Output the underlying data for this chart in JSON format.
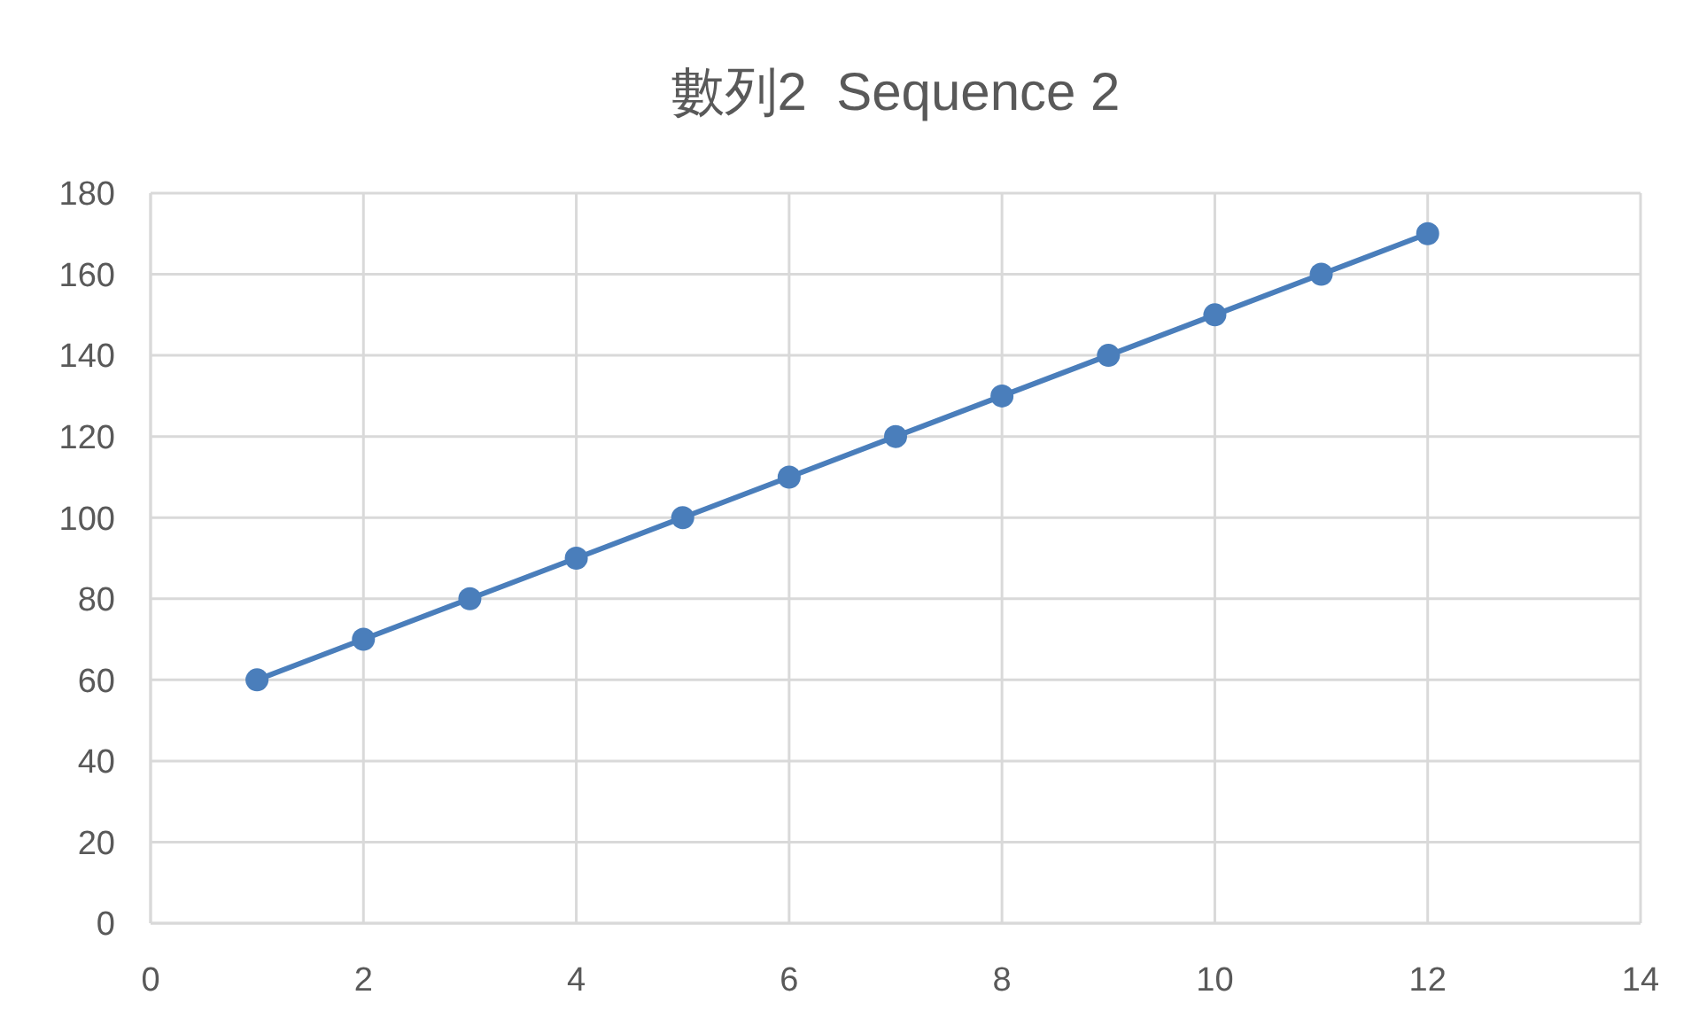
{
  "chart_data": {
    "type": "line",
    "title": "數列2  Sequence 2",
    "x": [
      1,
      2,
      3,
      4,
      5,
      6,
      7,
      8,
      9,
      10,
      11,
      12
    ],
    "series": [
      {
        "color": "#4a7ebb",
        "values": [
          60,
          70,
          80,
          90,
          100,
          110,
          120,
          130,
          140,
          150,
          160,
          170
        ]
      }
    ],
    "xlim": [
      0,
      14
    ],
    "xticks": [
      0,
      2,
      4,
      6,
      8,
      10,
      12,
      14
    ],
    "ylim": [
      0,
      180
    ],
    "yticks": [
      0,
      20,
      40,
      60,
      80,
      100,
      120,
      140,
      160,
      180
    ],
    "grid": true,
    "marker": "circle",
    "line_style": "solid"
  }
}
